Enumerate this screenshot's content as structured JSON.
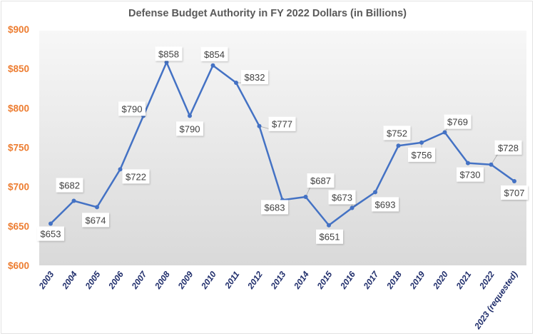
{
  "chart_data": {
    "type": "line",
    "title": "Defense Budget Authority in FY 2022 Dollars (in Billions)",
    "xlabel": "",
    "ylabel": "",
    "categories": [
      "2003",
      "2004",
      "2005",
      "2006",
      "2007",
      "2008",
      "2009",
      "2010",
      "2011",
      "2012",
      "2013",
      "2014",
      "2015",
      "2016",
      "2017",
      "2018",
      "2019",
      "2020",
      "2021",
      "2022",
      "2023 (requested)"
    ],
    "values": [
      653,
      682,
      674,
      722,
      790,
      858,
      790,
      854,
      832,
      777,
      683,
      687,
      651,
      673,
      693,
      752,
      756,
      769,
      730,
      728,
      707
    ],
    "data_labels": [
      "$653",
      "$682",
      "$674",
      "$722",
      "$790",
      "$858",
      "$790",
      "$854",
      "$832",
      "$777",
      "$683",
      "$687",
      "$651",
      "$673",
      "$693",
      "$752",
      "$756",
      "$769",
      "$730",
      "$728",
      "$707"
    ],
    "ylim": [
      600,
      900
    ],
    "yticks": [
      600,
      650,
      700,
      750,
      800,
      850,
      900
    ],
    "ytick_labels": [
      "$600",
      "$650",
      "$700",
      "$750",
      "$800",
      "$850",
      "$900"
    ],
    "grid": false,
    "legend": "none",
    "colors": {
      "line": "#4472C4",
      "ytick": "#ED7D31",
      "xtick": "#1F2D6B",
      "title": "#595959"
    }
  }
}
